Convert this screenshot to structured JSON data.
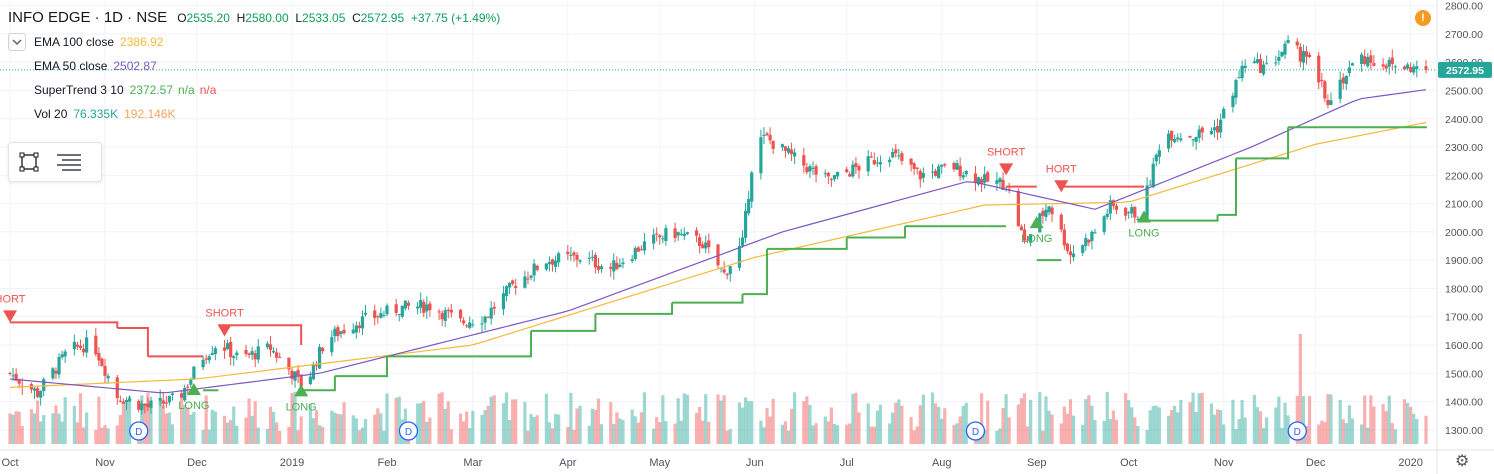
{
  "header": {
    "symbol": "INFO EDGE · 1D · NSE",
    "o_label": "O",
    "o_value": "2535.20",
    "h_label": "H",
    "h_value": "2580.00",
    "l_label": "L",
    "l_value": "2533.05",
    "c_label": "C",
    "c_value": "2572.95",
    "change": "+37.75 (+1.49%)"
  },
  "indicators": [
    {
      "name": "EMA 100 close",
      "v1": "2386.92",
      "v2": "",
      "v3": "",
      "color": "#f5b93a"
    },
    {
      "name": "EMA 50 close",
      "v1": "2502.87",
      "v2": "",
      "v3": "",
      "color": "#7e57c2"
    },
    {
      "name": "SuperTrend 3 10",
      "v1": "2372.57",
      "v2": "n/a",
      "v3": "n/a",
      "color": "#4caf50"
    },
    {
      "name": "Vol 20",
      "v1": "76.335K",
      "v2": "192.146K",
      "v3": "",
      "color": "#26a69a"
    }
  ],
  "icons": {
    "collapse": "chevron-down-icon",
    "rect": "rectangle-tool-icon",
    "menu": "menu-lines-icon",
    "alert": "alert-icon",
    "settings": "gear-icon"
  },
  "alert_symbol": "!",
  "gear_symbol": "⚙",
  "price_badge": "2572.95",
  "signals": [
    {
      "text": "SHORT",
      "kind": "short",
      "date": "2018-12-10",
      "price": 1630
    },
    {
      "text": "LONG",
      "kind": "long",
      "date": "2018-11-30",
      "price": 1395
    },
    {
      "text": "LONG",
      "kind": "long",
      "date": "2019-01-04",
      "price": 1390
    },
    {
      "text": "SHORT",
      "kind": "short",
      "date": "2019-08-22",
      "price": 2200
    },
    {
      "text": "LONG",
      "kind": "long",
      "date": "2019-09-01",
      "price": 1985
    },
    {
      "text": "HORT",
      "kind": "short",
      "date": "2019-09-09",
      "price": 2140
    },
    {
      "text": "LONG",
      "kind": "long",
      "date": "2019-10-06",
      "price": 2005
    },
    {
      "text": "HORT",
      "kind": "short",
      "date": "2018-10-01",
      "price": 1680
    }
  ],
  "dividend_markers": [
    {
      "label": "D",
      "date": "2018-11-12"
    },
    {
      "label": "D",
      "date": "2019-02-08"
    },
    {
      "label": "D",
      "date": "2019-08-12"
    },
    {
      "label": "D",
      "date": "2019-11-25"
    }
  ],
  "colors": {
    "up": "#26a69a",
    "down": "#ef5350",
    "supertrend_up": "#4caf50",
    "supertrend_down": "#ef5350",
    "grid": "#f0f3fa",
    "text": "#131722",
    "axis_text": "#50535e",
    "price_badge": "#26a69a"
  },
  "chart_data": {
    "type": "candlestick",
    "title": "INFO EDGE · 1D · NSE",
    "x_range": [
      "2018-10-01",
      "2020-01-06"
    ],
    "ylim": [
      1250,
      2820
    ],
    "y_ticks": [
      1300,
      1400,
      1500,
      1600,
      1700,
      1800,
      1900,
      2000,
      2100,
      2200,
      2300,
      2400,
      2500,
      2600,
      2700,
      2800
    ],
    "y_tick_labels": [
      "1300.00",
      "1400.00",
      "1500.00",
      "1600.00",
      "1700.00",
      "1800.00",
      "1900.00",
      "2000.00",
      "2100.00",
      "2200.00",
      "2300.00",
      "2400.00",
      "2500.00",
      "2600.00",
      "2700.00",
      "2800.00"
    ],
    "x_ticks": [
      {
        "label": "Oct",
        "date": "2018-10-01"
      },
      {
        "label": "Nov",
        "date": "2018-11-01"
      },
      {
        "label": "Dec",
        "date": "2018-12-01"
      },
      {
        "label": "2019",
        "date": "2019-01-01"
      },
      {
        "label": "Feb",
        "date": "2019-02-01"
      },
      {
        "label": "Mar",
        "date": "2019-03-01"
      },
      {
        "label": "Apr",
        "date": "2019-04-01"
      },
      {
        "label": "May",
        "date": "2019-05-01"
      },
      {
        "label": "Jun",
        "date": "2019-06-01"
      },
      {
        "label": "Jul",
        "date": "2019-07-01"
      },
      {
        "label": "Aug",
        "date": "2019-08-01"
      },
      {
        "label": "Sep",
        "date": "2019-09-01"
      },
      {
        "label": "Oct",
        "date": "2019-10-01"
      },
      {
        "label": "Nov",
        "date": "2019-11-01"
      },
      {
        "label": "Dec",
        "date": "2019-12-01"
      },
      {
        "label": "2020",
        "date": "2020-01-01"
      }
    ],
    "close_anchors": [
      [
        "2018-10-01",
        1500
      ],
      [
        "2018-10-10",
        1430
      ],
      [
        "2018-10-20",
        1580
      ],
      [
        "2018-10-28",
        1610
      ],
      [
        "2018-11-05",
        1420
      ],
      [
        "2018-11-15",
        1380
      ],
      [
        "2018-11-25",
        1410
      ],
      [
        "2018-12-03",
        1560
      ],
      [
        "2018-12-08",
        1610
      ],
      [
        "2018-12-15",
        1550
      ],
      [
        "2018-12-25",
        1590
      ],
      [
        "2019-01-05",
        1450
      ],
      [
        "2019-01-12",
        1620
      ],
      [
        "2019-01-22",
        1680
      ],
      [
        "2019-02-05",
        1730
      ],
      [
        "2019-02-15",
        1740
      ],
      [
        "2019-02-25",
        1680
      ],
      [
        "2019-03-05",
        1700
      ],
      [
        "2019-03-15",
        1820
      ],
      [
        "2019-03-25",
        1900
      ],
      [
        "2019-04-05",
        1910
      ],
      [
        "2019-04-15",
        1870
      ],
      [
        "2019-04-25",
        1950
      ],
      [
        "2019-05-05",
        2000
      ],
      [
        "2019-05-15",
        1960
      ],
      [
        "2019-05-22",
        1850
      ],
      [
        "2019-05-28",
        1960
      ],
      [
        "2019-06-01",
        2320
      ],
      [
        "2019-06-05",
        2330
      ],
      [
        "2019-06-15",
        2250
      ],
      [
        "2019-06-25",
        2180
      ],
      [
        "2019-07-05",
        2230
      ],
      [
        "2019-07-15",
        2280
      ],
      [
        "2019-07-25",
        2200
      ],
      [
        "2019-08-05",
        2230
      ],
      [
        "2019-08-15",
        2180
      ],
      [
        "2019-08-22",
        2170
      ],
      [
        "2019-08-28",
        1960
      ],
      [
        "2019-09-05",
        2100
      ],
      [
        "2019-09-12",
        1920
      ],
      [
        "2019-09-20",
        2000
      ],
      [
        "2019-09-25",
        2090
      ],
      [
        "2019-10-05",
        2060
      ],
      [
        "2019-10-12",
        2350
      ],
      [
        "2019-10-22",
        2340
      ],
      [
        "2019-10-30",
        2370
      ],
      [
        "2019-11-08",
        2600
      ],
      [
        "2019-11-15",
        2580
      ],
      [
        "2019-11-22",
        2660
      ],
      [
        "2019-11-29",
        2600
      ],
      [
        "2019-12-05",
        2470
      ],
      [
        "2019-12-15",
        2620
      ],
      [
        "2019-12-25",
        2590
      ],
      [
        "2020-01-06",
        2572.95
      ]
    ],
    "ema100_anchors": [
      [
        "2018-10-01",
        1450
      ],
      [
        "2018-12-01",
        1480
      ],
      [
        "2019-03-01",
        1600
      ],
      [
        "2019-06-01",
        1910
      ],
      [
        "2019-08-15",
        2095
      ],
      [
        "2019-10-01",
        2105
      ],
      [
        "2019-12-01",
        2310
      ],
      [
        "2020-01-06",
        2386.92
      ]
    ],
    "ema50_anchors": [
      [
        "2018-10-01",
        1480
      ],
      [
        "2018-11-20",
        1430
      ],
      [
        "2019-01-10",
        1500
      ],
      [
        "2019-04-01",
        1720
      ],
      [
        "2019-06-10",
        2000
      ],
      [
        "2019-08-10",
        2180
      ],
      [
        "2019-09-20",
        2080
      ],
      [
        "2019-11-10",
        2300
      ],
      [
        "2019-12-15",
        2470
      ],
      [
        "2020-01-06",
        2502.87
      ]
    ],
    "supertrend": [
      [
        "2018-10-01",
        1680,
        "down"
      ],
      [
        "2018-11-05",
        1660,
        "down"
      ],
      [
        "2018-11-15",
        1560,
        "down"
      ],
      [
        "2018-12-03",
        1560,
        "down"
      ],
      [
        "2018-12-03",
        1440,
        "up"
      ],
      [
        "2018-12-08",
        1440,
        "up"
      ],
      [
        "2018-12-08",
        1670,
        "down"
      ],
      [
        "2019-01-04",
        1600,
        "down"
      ],
      [
        "2019-01-04",
        1440,
        "up"
      ],
      [
        "2019-01-15",
        1490,
        "up"
      ],
      [
        "2019-02-01",
        1560,
        "up"
      ],
      [
        "2019-03-01",
        1560,
        "up"
      ],
      [
        "2019-03-20",
        1650,
        "up"
      ],
      [
        "2019-04-10",
        1710,
        "up"
      ],
      [
        "2019-05-05",
        1750,
        "up"
      ],
      [
        "2019-05-28",
        1780,
        "up"
      ],
      [
        "2019-06-05",
        1940,
        "up"
      ],
      [
        "2019-07-01",
        1980,
        "up"
      ],
      [
        "2019-07-20",
        2020,
        "up"
      ],
      [
        "2019-08-15",
        2020,
        "up"
      ],
      [
        "2019-08-22",
        2020,
        "up"
      ],
      [
        "2019-08-22",
        2160,
        "down"
      ],
      [
        "2019-09-01",
        2160,
        "down"
      ],
      [
        "2019-09-01",
        1900,
        "up"
      ],
      [
        "2019-09-09",
        1900,
        "up"
      ],
      [
        "2019-09-09",
        2160,
        "down"
      ],
      [
        "2019-10-06",
        2160,
        "down"
      ],
      [
        "2019-10-06",
        2040,
        "up"
      ],
      [
        "2019-10-30",
        2060,
        "up"
      ],
      [
        "2019-11-05",
        2260,
        "up"
      ],
      [
        "2019-11-22",
        2370,
        "up"
      ],
      [
        "2020-01-06",
        2372.57,
        "up"
      ]
    ],
    "volume": {
      "avg": 76335,
      "spike": 192146,
      "spike_date": "2019-11-26"
    },
    "last_price": 2572.95
  }
}
